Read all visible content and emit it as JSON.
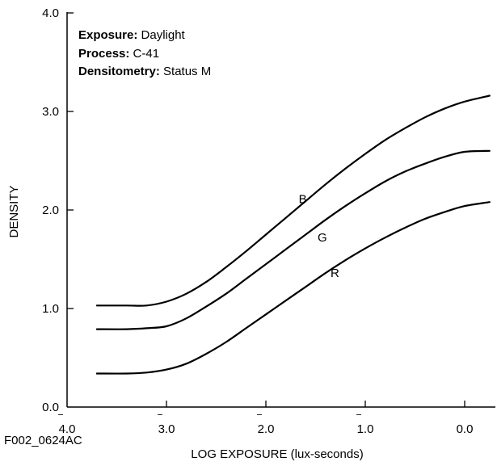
{
  "chart_data": {
    "type": "line",
    "xlabel": "LOG EXPOSURE (lux-seconds)",
    "ylabel": "DENSITY",
    "xlim": [
      -4.0,
      0.3
    ],
    "ylim": [
      0.0,
      4.0
    ],
    "grid": false,
    "x_ticks": [
      {
        "value": -4.0,
        "label": "4.0",
        "bar": "‾"
      },
      {
        "value": -3.0,
        "label": "3.0",
        "bar": "‾"
      },
      {
        "value": -2.0,
        "label": "2.0",
        "bar": "‾"
      },
      {
        "value": -1.0,
        "label": "1.0",
        "bar": "‾"
      },
      {
        "value": 0.0,
        "label": "0.0",
        "bar": ""
      }
    ],
    "y_ticks": [
      {
        "value": 0.0,
        "label": "0.0"
      },
      {
        "value": 1.0,
        "label": "1.0"
      },
      {
        "value": 2.0,
        "label": "2.0"
      },
      {
        "value": 3.0,
        "label": "3.0"
      },
      {
        "value": 4.0,
        "label": "4.0"
      }
    ],
    "series": [
      {
        "name": "B",
        "x": [
          -3.7,
          -3.4,
          -3.2,
          -3.0,
          -2.8,
          -2.6,
          -2.4,
          -2.2,
          -2.0,
          -1.8,
          -1.6,
          -1.4,
          -1.2,
          -1.0,
          -0.8,
          -0.6,
          -0.4,
          -0.2,
          0.0,
          0.25
        ],
        "y": [
          1.03,
          1.03,
          1.03,
          1.07,
          1.15,
          1.27,
          1.42,
          1.58,
          1.75,
          1.92,
          2.09,
          2.26,
          2.42,
          2.57,
          2.71,
          2.83,
          2.94,
          3.03,
          3.1,
          3.16
        ]
      },
      {
        "name": "G",
        "x": [
          -3.7,
          -3.4,
          -3.2,
          -3.0,
          -2.8,
          -2.6,
          -2.4,
          -2.2,
          -2.0,
          -1.8,
          -1.6,
          -1.4,
          -1.2,
          -1.0,
          -0.8,
          -0.6,
          -0.4,
          -0.2,
          0.0,
          0.25
        ],
        "y": [
          0.79,
          0.79,
          0.8,
          0.82,
          0.9,
          1.02,
          1.15,
          1.3,
          1.45,
          1.6,
          1.75,
          1.9,
          2.04,
          2.17,
          2.29,
          2.39,
          2.47,
          2.54,
          2.59,
          2.6
        ]
      },
      {
        "name": "R",
        "x": [
          -3.7,
          -3.4,
          -3.2,
          -3.0,
          -2.8,
          -2.6,
          -2.4,
          -2.2,
          -2.0,
          -1.8,
          -1.6,
          -1.4,
          -1.2,
          -1.0,
          -0.8,
          -0.6,
          -0.4,
          -0.2,
          0.0,
          0.25
        ],
        "y": [
          0.34,
          0.34,
          0.35,
          0.38,
          0.44,
          0.54,
          0.66,
          0.8,
          0.94,
          1.08,
          1.22,
          1.36,
          1.49,
          1.61,
          1.72,
          1.82,
          1.91,
          1.98,
          2.04,
          2.08
        ]
      }
    ],
    "annotations": [
      {
        "key": "Exposure:",
        "value": " Daylight"
      },
      {
        "key": "Process:",
        "value": " C-41"
      },
      {
        "key": "Densitometry:",
        "value": " Status M"
      }
    ]
  },
  "figure_code": "F002_0624AC"
}
